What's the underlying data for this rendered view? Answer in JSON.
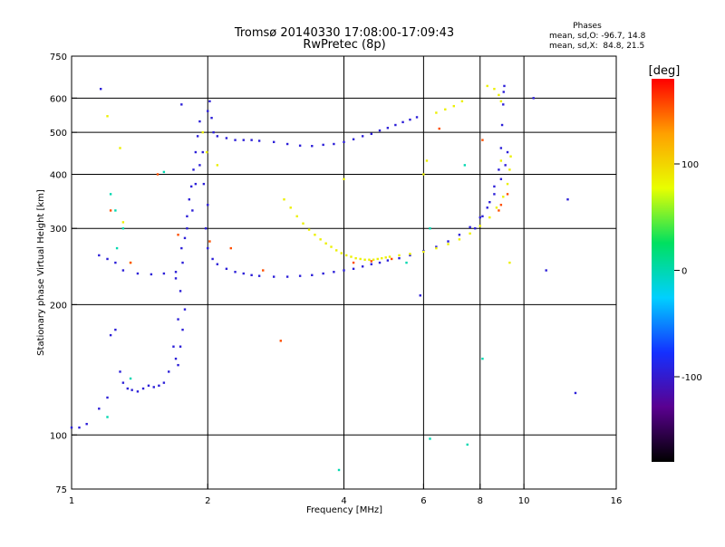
{
  "chart_data": {
    "type": "scatter",
    "title": "Tromsø 20140330 17:08:00-17:09:43",
    "subtitle": "RwPretec (8p)",
    "stats": {
      "heading": "Phases",
      "o_line": "mean, sd,O: -96.7, 14.8",
      "x_line": "mean, sd,X:  84.8, 21.5"
    },
    "xlabel": "Frequency [MHz]",
    "ylabel": "Stationary phase Virtual Height [km]",
    "x_scale": "log",
    "y_scale": "log",
    "xlim": [
      1,
      16
    ],
    "ylim": [
      75,
      750
    ],
    "x_ticks": [
      1,
      2,
      4,
      6,
      8,
      10,
      16
    ],
    "x_tick_labels": [
      "1",
      "2",
      "4",
      "6",
      "8",
      "10",
      "16"
    ],
    "y_ticks": [
      75,
      100,
      200,
      300,
      400,
      500,
      600,
      750
    ],
    "y_tick_labels": [
      "75",
      "100",
      "200",
      "300",
      "400",
      "500",
      "600",
      "750"
    ],
    "grid_x": [
      2,
      4,
      6,
      8,
      10
    ],
    "grid_y": [
      100,
      200,
      300,
      400,
      500,
      600
    ],
    "colorbar": {
      "label": "[deg]",
      "range": [
        -180,
        180
      ],
      "ticks": [
        100,
        0,
        -100
      ],
      "tick_labels": [
        "100",
        "0",
        "-100"
      ],
      "colors": [
        "#000000",
        "#5a0090",
        "#1430ff",
        "#00d0ff",
        "#00e060",
        "#e8ff00",
        "#ffa000",
        "#ff0000"
      ]
    },
    "series": [
      {
        "phase": -95,
        "points": [
          [
            1.0,
            104
          ],
          [
            1.04,
            104
          ],
          [
            1.08,
            106
          ],
          [
            1.15,
            115
          ],
          [
            1.2,
            122
          ],
          [
            1.22,
            170
          ],
          [
            1.25,
            175
          ],
          [
            1.28,
            140
          ],
          [
            1.3,
            132
          ],
          [
            1.33,
            128
          ],
          [
            1.36,
            127
          ],
          [
            1.4,
            126
          ],
          [
            1.44,
            128
          ],
          [
            1.48,
            130
          ],
          [
            1.52,
            129
          ],
          [
            1.56,
            130
          ],
          [
            1.6,
            132
          ],
          [
            1.64,
            140
          ],
          [
            1.68,
            160
          ],
          [
            1.72,
            185
          ],
          [
            1.74,
            215
          ],
          [
            1.76,
            250
          ],
          [
            1.78,
            285
          ],
          [
            1.8,
            320
          ],
          [
            1.82,
            350
          ],
          [
            1.84,
            375
          ],
          [
            1.86,
            410
          ],
          [
            1.88,
            450
          ],
          [
            1.9,
            490
          ],
          [
            1.92,
            530
          ],
          [
            1.7,
            150
          ],
          [
            1.72,
            145
          ],
          [
            1.74,
            160
          ],
          [
            1.76,
            175
          ],
          [
            1.78,
            195
          ],
          [
            1.7,
            230
          ],
          [
            1.75,
            270
          ],
          [
            1.8,
            300
          ],
          [
            1.85,
            330
          ],
          [
            1.88,
            380
          ],
          [
            1.92,
            420
          ],
          [
            1.95,
            450
          ],
          [
            1.98,
            300
          ],
          [
            2.0,
            340
          ],
          [
            1.96,
            380
          ],
          [
            2.0,
            560
          ],
          [
            2.02,
            590
          ],
          [
            2.04,
            540
          ],
          [
            2.06,
            500
          ],
          [
            2.1,
            490
          ],
          [
            2.2,
            485
          ],
          [
            2.3,
            480
          ],
          [
            2.4,
            480
          ],
          [
            2.5,
            480
          ],
          [
            2.6,
            478
          ],
          [
            2.8,
            475
          ],
          [
            3.0,
            470
          ],
          [
            3.2,
            466
          ],
          [
            3.4,
            465
          ],
          [
            3.6,
            468
          ],
          [
            3.8,
            470
          ],
          [
            4.0,
            475
          ],
          [
            4.2,
            482
          ],
          [
            4.4,
            490
          ],
          [
            4.6,
            496
          ],
          [
            4.8,
            505
          ],
          [
            5.0,
            512
          ],
          [
            5.2,
            520
          ],
          [
            5.4,
            528
          ],
          [
            5.6,
            535
          ],
          [
            5.8,
            542
          ],
          [
            2.0,
            270
          ],
          [
            2.05,
            255
          ],
          [
            2.1,
            248
          ],
          [
            2.2,
            242
          ],
          [
            2.3,
            238
          ],
          [
            2.4,
            236
          ],
          [
            2.5,
            234
          ],
          [
            2.6,
            233
          ],
          [
            2.8,
            232
          ],
          [
            3.0,
            232
          ],
          [
            3.2,
            233
          ],
          [
            3.4,
            234
          ],
          [
            3.6,
            236
          ],
          [
            3.8,
            238
          ],
          [
            4.0,
            240
          ],
          [
            4.2,
            242
          ],
          [
            4.4,
            245
          ],
          [
            4.6,
            248
          ],
          [
            4.8,
            250
          ],
          [
            5.0,
            253
          ],
          [
            5.3,
            256
          ],
          [
            5.6,
            260
          ],
          [
            6.0,
            266
          ],
          [
            6.4,
            272
          ],
          [
            6.8,
            280
          ],
          [
            7.2,
            290
          ],
          [
            7.6,
            302
          ],
          [
            8.0,
            318
          ],
          [
            8.3,
            335
          ],
          [
            8.6,
            360
          ],
          [
            8.9,
            390
          ],
          [
            9.1,
            420
          ],
          [
            9.2,
            450
          ],
          [
            7.8,
            300
          ],
          [
            8.1,
            320
          ],
          [
            8.4,
            345
          ],
          [
            8.6,
            375
          ],
          [
            8.8,
            410
          ],
          [
            8.9,
            460
          ],
          [
            8.95,
            520
          ],
          [
            9.0,
            580
          ],
          [
            9.02,
            620
          ],
          [
            9.05,
            640
          ],
          [
            1.3,
            240
          ],
          [
            1.4,
            236
          ],
          [
            1.5,
            235
          ],
          [
            1.6,
            236
          ],
          [
            1.7,
            238
          ],
          [
            1.25,
            250
          ],
          [
            1.2,
            255
          ],
          [
            1.15,
            260
          ],
          [
            1.16,
            630
          ],
          [
            1.75,
            580
          ],
          [
            12.5,
            350
          ],
          [
            11.2,
            240
          ],
          [
            10.5,
            600
          ],
          [
            5.9,
            210
          ],
          [
            13.0,
            125
          ]
        ]
      },
      {
        "phase": 85,
        "points": [
          [
            2.95,
            350
          ],
          [
            3.05,
            335
          ],
          [
            3.15,
            320
          ],
          [
            3.25,
            308
          ],
          [
            3.35,
            298
          ],
          [
            3.45,
            290
          ],
          [
            3.55,
            283
          ],
          [
            3.65,
            277
          ],
          [
            3.75,
            272
          ],
          [
            3.85,
            267
          ],
          [
            3.95,
            263
          ],
          [
            4.05,
            260
          ],
          [
            4.15,
            258
          ],
          [
            4.25,
            256
          ],
          [
            4.35,
            255
          ],
          [
            4.45,
            254
          ],
          [
            4.55,
            254
          ],
          [
            4.65,
            254
          ],
          [
            4.75,
            255
          ],
          [
            4.85,
            256
          ],
          [
            4.95,
            257
          ],
          [
            5.05,
            258
          ],
          [
            5.3,
            260
          ],
          [
            5.6,
            262
          ],
          [
            6.0,
            265
          ],
          [
            6.4,
            270
          ],
          [
            6.8,
            276
          ],
          [
            7.2,
            283
          ],
          [
            7.6,
            292
          ],
          [
            8.0,
            304
          ],
          [
            8.4,
            318
          ],
          [
            8.7,
            335
          ],
          [
            9.0,
            355
          ],
          [
            9.2,
            380
          ],
          [
            9.3,
            410
          ],
          [
            9.35,
            440
          ],
          [
            6.4,
            555
          ],
          [
            6.7,
            565
          ],
          [
            7.0,
            575
          ],
          [
            7.3,
            590
          ],
          [
            8.3,
            640
          ],
          [
            8.6,
            630
          ],
          [
            8.8,
            610
          ],
          [
            8.9,
            590
          ],
          [
            1.2,
            545
          ],
          [
            1.28,
            460
          ],
          [
            1.3,
            310
          ],
          [
            1.35,
            250
          ],
          [
            1.95,
            500
          ],
          [
            1.99,
            450
          ],
          [
            2.1,
            420
          ],
          [
            6.0,
            400
          ],
          [
            6.1,
            430
          ],
          [
            4.0,
            390
          ],
          [
            9.3,
            250
          ],
          [
            8.9,
            430
          ]
        ]
      },
      {
        "phase": 0,
        "points": [
          [
            1.22,
            360
          ],
          [
            1.25,
            330
          ],
          [
            1.3,
            300
          ],
          [
            1.26,
            270
          ],
          [
            1.6,
            405
          ],
          [
            6.2,
            300
          ],
          [
            7.4,
            420
          ],
          [
            5.5,
            250
          ],
          [
            8.1,
            150
          ],
          [
            1.2,
            110
          ],
          [
            1.35,
            135
          ],
          [
            6.2,
            98
          ],
          [
            7.5,
            95
          ],
          [
            3.9,
            83
          ]
        ]
      },
      {
        "phase": 155,
        "points": [
          [
            1.22,
            330
          ],
          [
            1.35,
            250
          ],
          [
            1.72,
            290
          ],
          [
            2.25,
            270
          ],
          [
            2.65,
            240
          ],
          [
            4.2,
            250
          ],
          [
            4.6,
            252
          ],
          [
            5.1,
            255
          ],
          [
            8.8,
            330
          ],
          [
            8.9,
            340
          ],
          [
            9.2,
            360
          ],
          [
            8.1,
            480
          ],
          [
            6.5,
            510
          ],
          [
            1.55,
            400
          ],
          [
            2.02,
            280
          ],
          [
            2.9,
            165
          ]
        ]
      }
    ]
  }
}
